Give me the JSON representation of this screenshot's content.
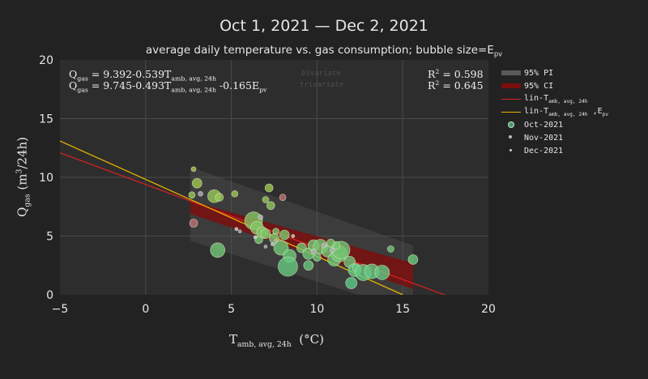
{
  "chart_data": {
    "type": "scatter",
    "title": "Oct 1, 2021 — Dec 2, 2021",
    "subtitle_main": "average daily temperature vs. gas consumption; bubble size=E",
    "subtitle_sub": "pv",
    "xlabel_main": "T",
    "xlabel_sub": "amb, avg, 24h",
    "xlabel_unit": "(°C)",
    "ylabel_main": "Q",
    "ylabel_sub": "gas",
    "ylabel_unit_a": "(m",
    "ylabel_unit_sup": "3",
    "ylabel_unit_b": "/24h)",
    "xlim": [
      -5,
      20
    ],
    "ylim": [
      0,
      20
    ],
    "xticks": [
      -5,
      0,
      5,
      10,
      15,
      20
    ],
    "yticks": [
      0,
      5,
      10,
      15,
      20
    ],
    "grid": true,
    "legend_position": "right",
    "colors": {
      "background": "#222222",
      "plot_background": "#2d2d2d",
      "grid": "#4a4a4a",
      "pi_band": "#5a5a5a",
      "ci_band": "#7a0e0e",
      "line_bivariate": "#d42020",
      "line_trivariate": "#e8b400",
      "oct": "#5cc98a",
      "nov": "#bdbdbd",
      "dec": "#cfcfcf"
    },
    "legend": [
      {
        "label": "95% PI",
        "kind": "band-pi"
      },
      {
        "label": "95% CI",
        "kind": "band-ci"
      },
      {
        "label_main": "lin-T",
        "label_sub": "amb, avg, 24h",
        "label_tail": "",
        "label_tail_sub": "",
        "kind": "line-red"
      },
      {
        "label_main": "lin-T",
        "label_sub": "amb, avg, 24h",
        "label_tail": " ,E",
        "label_tail_sub": "pv",
        "kind": "line-yellow"
      },
      {
        "label": "Oct-2021",
        "kind": "dot-oct"
      },
      {
        "label": "Nov-2021",
        "kind": "dot-nov"
      },
      {
        "label": "Dec-2021",
        "kind": "dot-dec"
      }
    ],
    "equations": [
      {
        "lhs": "Q",
        "lhs_sub": "gas",
        "rhs_a": " = 9.392-0.539T",
        "rhs_sub": "amb, avg, 24h",
        "rhs_b": ""
      },
      {
        "lhs": "Q",
        "lhs_sub": "gas",
        "rhs_a": " = 9.745-0.493T",
        "rhs_sub": "amb, avg, 24h",
        "rhs_b": " -0.165E",
        "rhs_b_sub": "pv"
      }
    ],
    "r2": [
      {
        "label": "R",
        "sup": "2",
        "value": " = 0.598"
      },
      {
        "label": "R",
        "sup": "2",
        "value": " = 0.645"
      }
    ],
    "watermarks": [
      "bivariate",
      "trivariate"
    ],
    "lines": {
      "bivariate": {
        "intercept": 9.392,
        "slope": -0.539,
        "x_range": [
          -5,
          17.5
        ]
      },
      "trivariate": {
        "x": [
          -5,
          15
        ],
        "y": [
          13.1,
          0
        ]
      }
    },
    "pi_band": {
      "x": [
        2.6,
        15.6
      ],
      "upper": [
        10.9,
        4.2
      ],
      "lower": [
        4.6,
        -1.5
      ]
    },
    "ci_band": {
      "x": [
        2.6,
        15.6
      ],
      "upper": [
        8.0,
        2.7
      ],
      "lower": [
        6.9,
        0.5
      ]
    },
    "series": [
      {
        "name": "Oct-2021",
        "points": [
          [
            2.8,
            10.7,
            3
          ],
          [
            2.7,
            8.5,
            4
          ],
          [
            3.0,
            9.5,
            6
          ],
          [
            4.0,
            8.4,
            8
          ],
          [
            4.3,
            8.3,
            5
          ],
          [
            5.2,
            8.6,
            4
          ],
          [
            4.2,
            3.8,
            9
          ],
          [
            6.3,
            6.3,
            11
          ],
          [
            6.5,
            5.7,
            8
          ],
          [
            6.8,
            5.3,
            7
          ],
          [
            6.6,
            4.7,
            5
          ],
          [
            7.2,
            9.1,
            5
          ],
          [
            7.0,
            8.1,
            4
          ],
          [
            7.3,
            7.6,
            5
          ],
          [
            7.0,
            5.2,
            6
          ],
          [
            7.5,
            4.8,
            6
          ],
          [
            7.6,
            5.4,
            4
          ],
          [
            7.9,
            4.0,
            9
          ],
          [
            8.4,
            3.3,
            8
          ],
          [
            8.1,
            5.1,
            6
          ],
          [
            8.3,
            2.4,
            12
          ],
          [
            9.1,
            4.0,
            6
          ],
          [
            9.5,
            3.5,
            7
          ],
          [
            9.5,
            2.5,
            6
          ],
          [
            9.8,
            4.2,
            7
          ],
          [
            10.2,
            4.1,
            9
          ],
          [
            10.6,
            3.7,
            7
          ],
          [
            11.0,
            3.0,
            8
          ],
          [
            11.3,
            3.5,
            10
          ],
          [
            11.4,
            3.8,
            11
          ],
          [
            11.1,
            4.2,
            5
          ],
          [
            11.9,
            2.8,
            7
          ],
          [
            12.0,
            1.0,
            7
          ],
          [
            12.2,
            2.1,
            8
          ],
          [
            12.3,
            2.3,
            5
          ],
          [
            12.7,
            1.9,
            10
          ],
          [
            13.2,
            2.0,
            9
          ],
          [
            13.8,
            1.9,
            9
          ],
          [
            14.3,
            3.9,
            4
          ],
          [
            15.6,
            3.0,
            6
          ],
          [
            10.0,
            3.2,
            5
          ],
          [
            10.8,
            4.4,
            5
          ]
        ]
      },
      {
        "name": "Nov-2021",
        "points": [
          [
            2.8,
            6.1,
            5
          ],
          [
            3.2,
            8.6,
            3
          ],
          [
            5.5,
            5.4,
            2
          ],
          [
            6.7,
            6.6,
            3
          ],
          [
            7.0,
            4.1,
            2
          ],
          [
            8.0,
            8.3,
            4
          ],
          [
            7.6,
            4.6,
            2
          ],
          [
            9.8,
            3.7,
            3
          ],
          [
            10.4,
            4.2,
            3
          ],
          [
            10.9,
            3.8,
            3
          ]
        ]
      },
      {
        "name": "Dec-2021",
        "points": [
          [
            5.3,
            5.6,
            2
          ],
          [
            6.4,
            4.9,
            2
          ],
          [
            7.4,
            4.3,
            2
          ],
          [
            8.6,
            5.0,
            2
          ]
        ]
      }
    ]
  }
}
